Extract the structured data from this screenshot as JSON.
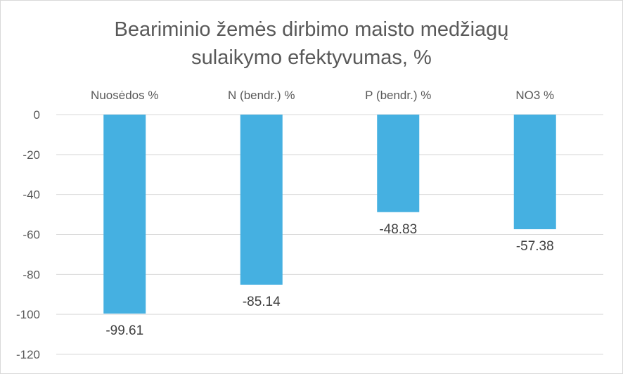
{
  "chart_data": {
    "type": "bar",
    "title_lines": [
      "Beariminio žemės dirbimo maisto medžiagų",
      "sulaikymo efektyvumas, %"
    ],
    "categories": [
      "Nuosėdos %",
      "N (bendr.) %",
      "P (bendr.) %",
      "NO3 %"
    ],
    "values": [
      -99.61,
      -85.14,
      -48.83,
      -57.38
    ],
    "data_labels": [
      "-99.61",
      "-85.14",
      "-48.83",
      "-57.38"
    ],
    "ylim": [
      -120,
      0
    ],
    "yticks": [
      0,
      -20,
      -40,
      -60,
      -80,
      -100,
      -120
    ],
    "grid": true,
    "category_axis_position": "top",
    "bar_color": "#45b0e1"
  }
}
